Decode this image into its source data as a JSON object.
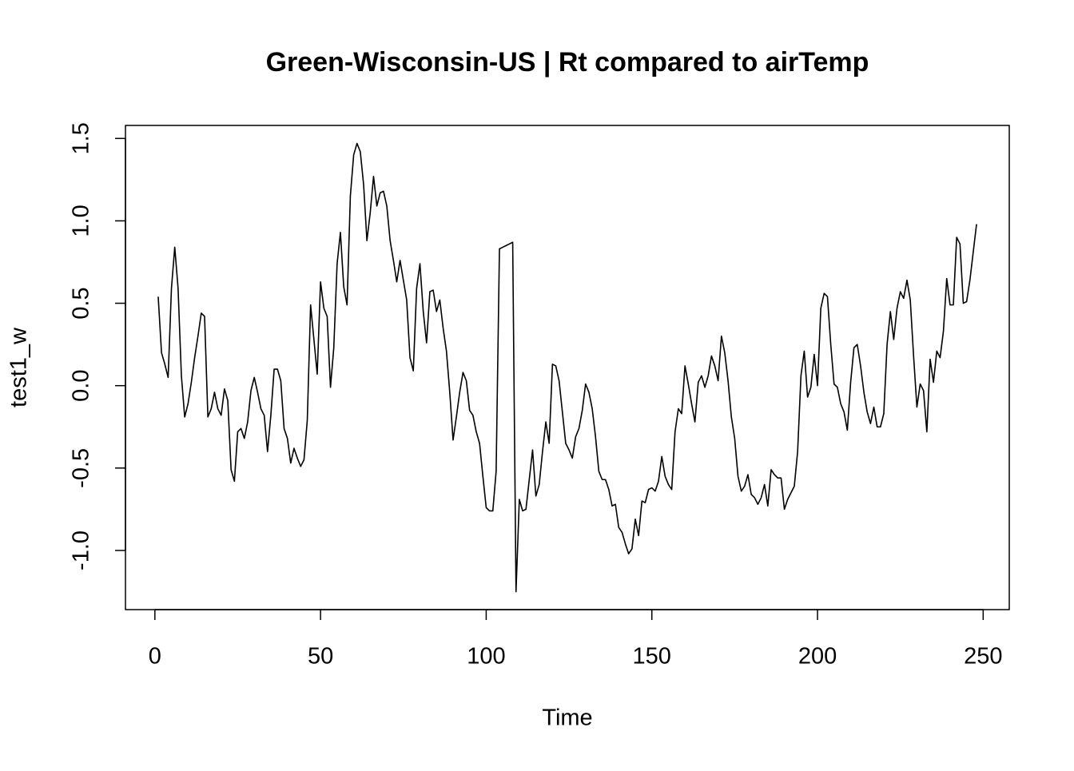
{
  "chart_data": {
    "type": "line",
    "title": "Green-Wisconsin-US | Rt compared to airTemp",
    "x_label": "Time",
    "y_label": "test1_w",
    "color": "#000000",
    "x": [
      1,
      2,
      3,
      4,
      5,
      6,
      7,
      8,
      9,
      10,
      11,
      12,
      13,
      14,
      15,
      16,
      17,
      18,
      19,
      20,
      21,
      22,
      23,
      24,
      25,
      26,
      27,
      28,
      29,
      30,
      31,
      32,
      33,
      34,
      35,
      36,
      37,
      38,
      39,
      40,
      41,
      42,
      43,
      44,
      45,
      46,
      47,
      48,
      49,
      50,
      51,
      52,
      53,
      54,
      55,
      56,
      57,
      58,
      59,
      60,
      61,
      62,
      63,
      64,
      65,
      66,
      67,
      68,
      69,
      70,
      71,
      72,
      73,
      74,
      75,
      76,
      77,
      78,
      79,
      80,
      81,
      82,
      83,
      84,
      85,
      86,
      87,
      88,
      89,
      90,
      91,
      92,
      93,
      94,
      95,
      96,
      97,
      98,
      99,
      100,
      101,
      102,
      103,
      104,
      105,
      106,
      107,
      108,
      109,
      110,
      111,
      112,
      113,
      114,
      115,
      116,
      117,
      118,
      119,
      120,
      121,
      122,
      123,
      124,
      125,
      126,
      127,
      128,
      129,
      130,
      131,
      132,
      133,
      134,
      135,
      136,
      137,
      138,
      139,
      140,
      141,
      142,
      143,
      144,
      145,
      146,
      147,
      148,
      149,
      150,
      151,
      152,
      153,
      154,
      155,
      156,
      157,
      158,
      159,
      160,
      161,
      162,
      163,
      164,
      165,
      166,
      167,
      168,
      169,
      170,
      171,
      172,
      173,
      174,
      175,
      176,
      177,
      178,
      179,
      180,
      181,
      182,
      183,
      184,
      185,
      186,
      187,
      188,
      189,
      190,
      191,
      192,
      193,
      194,
      195,
      196,
      197,
      198,
      199,
      200,
      201,
      202,
      203,
      204,
      205,
      206,
      207,
      208,
      209,
      210,
      211,
      212,
      213,
      214,
      215,
      216,
      217,
      218,
      219,
      220,
      221,
      222,
      223,
      224,
      225,
      226,
      227,
      228,
      229,
      230,
      231,
      232,
      233,
      234,
      235,
      236,
      237,
      238,
      239,
      240,
      241,
      242,
      243,
      244,
      245,
      246,
      247,
      248
    ],
    "values": [
      0.54,
      0.2,
      0.13,
      0.05,
      0.59,
      0.84,
      0.59,
      0.06,
      -0.19,
      -0.11,
      0.02,
      0.17,
      0.3,
      0.44,
      0.42,
      -0.19,
      -0.14,
      -0.04,
      -0.14,
      -0.18,
      -0.02,
      -0.09,
      -0.51,
      -0.58,
      -0.28,
      -0.26,
      -0.32,
      -0.22,
      -0.03,
      0.05,
      -0.04,
      -0.14,
      -0.18,
      -0.4,
      -0.18,
      0.1,
      0.1,
      0.03,
      -0.26,
      -0.32,
      -0.47,
      -0.38,
      -0.44,
      -0.49,
      -0.45,
      -0.21,
      0.49,
      0.28,
      0.07,
      0.63,
      0.47,
      0.42,
      -0.01,
      0.23,
      0.74,
      0.93,
      0.6,
      0.49,
      1.15,
      1.4,
      1.47,
      1.42,
      1.22,
      0.88,
      1.05,
      1.27,
      1.09,
      1.17,
      1.18,
      1.09,
      0.88,
      0.76,
      0.63,
      0.76,
      0.64,
      0.52,
      0.17,
      0.09,
      0.59,
      0.74,
      0.45,
      0.26,
      0.57,
      0.58,
      0.45,
      0.52,
      0.35,
      0.21,
      -0.04,
      -0.33,
      -0.19,
      -0.04,
      0.08,
      0.03,
      -0.15,
      -0.18,
      -0.28,
      -0.35,
      -0.55,
      -0.74,
      -0.76,
      -0.76,
      -0.52,
      0.83,
      0.84,
      0.85,
      0.86,
      0.87,
      -1.25,
      -0.69,
      -0.76,
      -0.75,
      -0.57,
      -0.39,
      -0.67,
      -0.6,
      -0.4,
      -0.22,
      -0.35,
      0.13,
      0.12,
      0.03,
      -0.16,
      -0.35,
      -0.39,
      -0.44,
      -0.31,
      -0.26,
      -0.15,
      0.01,
      -0.04,
      -0.14,
      -0.31,
      -0.52,
      -0.57,
      -0.57,
      -0.63,
      -0.73,
      -0.72,
      -0.86,
      -0.89,
      -0.96,
      -1.02,
      -0.99,
      -0.81,
      -0.91,
      -0.7,
      -0.71,
      -0.63,
      -0.62,
      -0.64,
      -0.58,
      -0.43,
      -0.55,
      -0.6,
      -0.63,
      -0.28,
      -0.14,
      -0.17,
      0.12,
      0.01,
      -0.11,
      -0.22,
      0.02,
      0.06,
      -0.01,
      0.06,
      0.18,
      0.12,
      0.03,
      0.3,
      0.2,
      0.03,
      -0.19,
      -0.32,
      -0.55,
      -0.64,
      -0.61,
      -0.54,
      -0.66,
      -0.68,
      -0.72,
      -0.68,
      -0.6,
      -0.73,
      -0.51,
      -0.54,
      -0.56,
      -0.56,
      -0.75,
      -0.69,
      -0.65,
      -0.61,
      -0.4,
      0.06,
      0.21,
      -0.07,
      -0.01,
      0.19,
      0.0,
      0.47,
      0.56,
      0.54,
      0.25,
      0.01,
      -0.01,
      -0.11,
      -0.16,
      -0.27,
      0.02,
      0.23,
      0.25,
      0.12,
      -0.04,
      -0.16,
      -0.23,
      -0.13,
      -0.25,
      -0.25,
      -0.17,
      0.25,
      0.45,
      0.28,
      0.47,
      0.57,
      0.53,
      0.64,
      0.52,
      0.18,
      -0.13,
      0.01,
      -0.03,
      -0.28,
      0.16,
      0.02,
      0.21,
      0.17,
      0.33,
      0.65,
      0.49,
      0.49,
      0.9,
      0.86,
      0.5,
      0.51,
      0.64,
      0.81,
      0.98
    ],
    "xlim": [
      -8.88,
      257.88
    ],
    "xticks": [
      0,
      50,
      100,
      150,
      200,
      250
    ],
    "ylim": [
      -1.359,
      1.579
    ],
    "yticks": [
      {
        "value": -1.0,
        "label": "-1.0"
      },
      -0.5,
      {
        "value": 0.0,
        "label": "0.0"
      },
      0.5,
      {
        "value": 1.0,
        "label": "1.0"
      },
      1.5
    ]
  }
}
